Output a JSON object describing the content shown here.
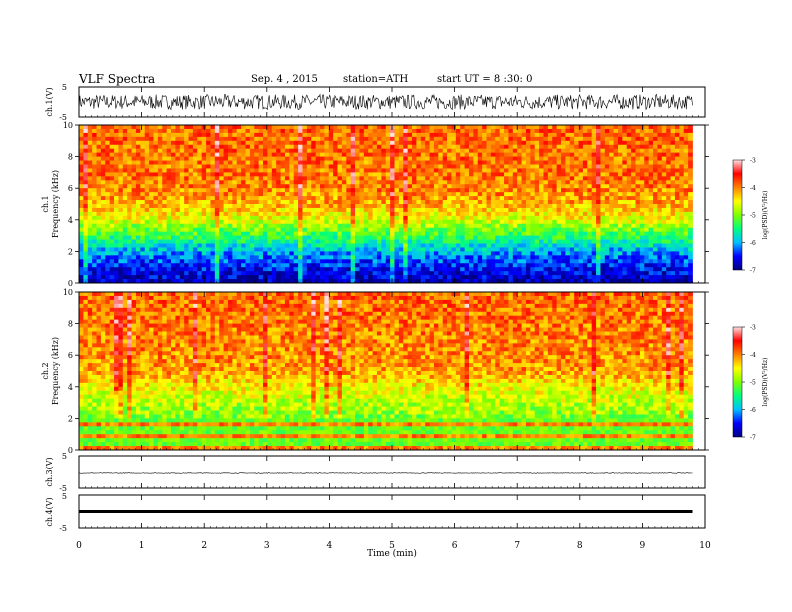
{
  "header": {
    "title": "VLF Spectra",
    "date": "Sep. 4 , 2015",
    "station": "station=ATH",
    "start": "start UT = 8 :30: 0"
  },
  "chart_data": {
    "type": "heatmap",
    "x_axis": {
      "label": "Time (min)",
      "range": [
        0,
        10
      ],
      "ticks": [
        "0",
        "1",
        "2",
        "3",
        "4",
        "5",
        "6",
        "7",
        "8",
        "9",
        "10"
      ]
    },
    "panels": [
      {
        "id": "ch1-waveform",
        "type": "line",
        "ylabel": "ch.1(V)",
        "ylim": [
          -5,
          5
        ],
        "yticks": [
          "5",
          "-5"
        ],
        "description_values": {
          "mean": 0.0,
          "amplitude": 2.5
        },
        "x_end": 9.8
      },
      {
        "id": "ch1-spectrogram",
        "type": "heatmap",
        "ylabel_channel": "ch.1",
        "ylabel": "Frequency (kHz)",
        "ylim": [
          0,
          10
        ],
        "yticks": [
          "0",
          "2",
          "4",
          "6",
          "8",
          "10"
        ],
        "frequency_profile_kHz": [
          0,
          1,
          2,
          3,
          3.5,
          4,
          5,
          6,
          10
        ],
        "log_psd_profile": [
          -6.8,
          -6.5,
          -6.0,
          -5.3,
          -5.0,
          -4.6,
          -4.2,
          -4.0,
          -3.9
        ],
        "x_end": 9.8
      },
      {
        "id": "ch2-spectrogram",
        "type": "heatmap",
        "ylabel_channel": "ch.2",
        "ylabel": "Frequency (kHz)",
        "ylim": [
          0,
          10
        ],
        "yticks": [
          "0",
          "2",
          "4",
          "6",
          "8",
          "10"
        ],
        "frequency_profile_kHz": [
          0,
          1,
          2,
          3,
          4,
          5,
          10
        ],
        "log_psd_profile": [
          -4.5,
          -5.2,
          -5.0,
          -4.8,
          -4.5,
          -4.1,
          -3.9
        ],
        "x_end": 9.8
      },
      {
        "id": "ch3-waveform",
        "type": "line",
        "ylabel": "ch.3(V)",
        "ylim": [
          -5,
          5
        ],
        "yticks": [
          "5",
          "-5"
        ],
        "description_values": {
          "mean": -0.3,
          "amplitude": 0.1
        },
        "x_end": 9.8
      },
      {
        "id": "ch4-waveform",
        "type": "line",
        "ylabel": "ch.4(V)",
        "ylim": [
          -5,
          5
        ],
        "yticks": [
          "5",
          "-5"
        ],
        "description_values": {
          "mean": 0.0,
          "amplitude": 0.05
        },
        "x_end": 9.8
      }
    ],
    "colorbar": {
      "label": "log(PSD)(V²/Hz)",
      "range": [
        -7,
        -3
      ],
      "ticks": [
        "-3",
        "-4",
        "-5",
        "-6",
        "-7"
      ],
      "stops": [
        "#000080",
        "#0000ff",
        "#00c0ff",
        "#00ff80",
        "#80ff00",
        "#ffff00",
        "#ff8000",
        "#ff0000",
        "#ffe0e0"
      ]
    }
  }
}
